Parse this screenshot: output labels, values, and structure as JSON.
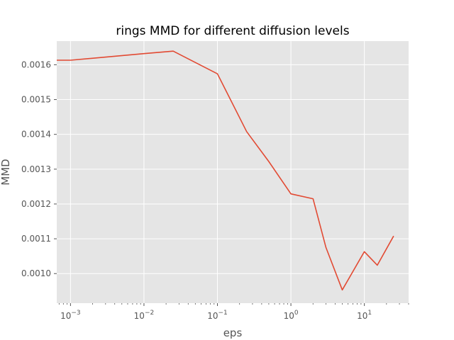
{
  "chart_data": {
    "type": "line",
    "title": "rings MMD for different diffusion levels",
    "xlabel": "eps",
    "ylabel": "MMD",
    "xscale": "log",
    "xlim": [
      0.00065,
      40
    ],
    "ylim": [
      0.000915,
      0.001668
    ],
    "grid": true,
    "x_ticks": [
      {
        "value": 0.001,
        "base": "10",
        "exp": "−3"
      },
      {
        "value": 0.01,
        "base": "10",
        "exp": "−2"
      },
      {
        "value": 0.1,
        "base": "10",
        "exp": "−1"
      },
      {
        "value": 1,
        "base": "10",
        "exp": "0"
      },
      {
        "value": 10,
        "base": "10",
        "exp": "1"
      }
    ],
    "y_ticks": [
      {
        "value": 0.001,
        "label": "0.0010"
      },
      {
        "value": 0.0011,
        "label": "0.0011"
      },
      {
        "value": 0.0012,
        "label": "0.0012"
      },
      {
        "value": 0.0013,
        "label": "0.0013"
      },
      {
        "value": 0.0014,
        "label": "0.0014"
      },
      {
        "value": 0.0015,
        "label": "0.0015"
      },
      {
        "value": 0.0016,
        "label": "0.0016"
      }
    ],
    "series": [
      {
        "color": "#E24A33",
        "x": [
          0.00065,
          0.001,
          0.01,
          0.025,
          0.1,
          0.25,
          0.5,
          1,
          2,
          3,
          5,
          10,
          15,
          25
        ],
        "y": [
          0.001613,
          0.001613,
          0.001632,
          0.001639,
          0.001574,
          0.001408,
          0.001322,
          0.001229,
          0.001215,
          0.001075,
          0.000953,
          0.001063,
          0.001024,
          0.001108
        ]
      }
    ]
  }
}
